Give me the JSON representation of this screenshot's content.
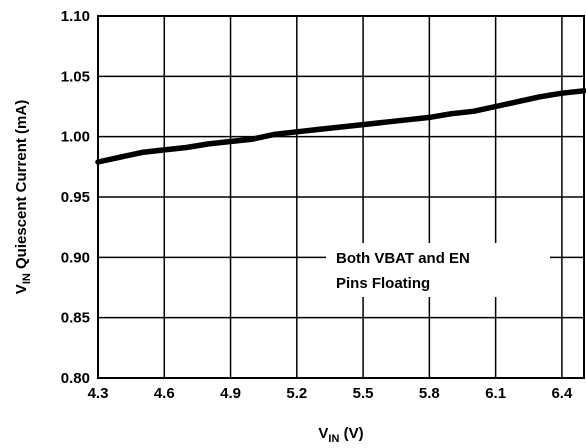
{
  "chart_data": {
    "type": "line",
    "title": "",
    "xlabel": {
      "main": "V",
      "sub": "IN",
      "suffix": " (V)"
    },
    "ylabel": {
      "main": "V",
      "sub": "IN",
      "suffix": " Quiescent Current (mA)"
    },
    "xlim": [
      4.3,
      6.5
    ],
    "ylim": [
      0.8,
      1.1
    ],
    "x_ticks": [
      4.3,
      4.6,
      4.9,
      5.2,
      5.5,
      5.8,
      6.1,
      6.4
    ],
    "x_tick_labels": [
      "4.3",
      "4.6",
      "4.9",
      "5.2",
      "5.5",
      "5.8",
      "6.1",
      "6.4"
    ],
    "y_ticks": [
      0.8,
      0.85,
      0.9,
      0.95,
      1.0,
      1.05,
      1.1
    ],
    "y_tick_labels": [
      "0.80",
      "0.85",
      "0.90",
      "0.95",
      "1.00",
      "1.05",
      "1.10"
    ],
    "grid": true,
    "series": [
      {
        "x": [
          4.3,
          4.4,
          4.5,
          4.6,
          4.7,
          4.8,
          4.9,
          5.0,
          5.1,
          5.2,
          5.3,
          5.4,
          5.5,
          5.6,
          5.7,
          5.8,
          5.9,
          6.0,
          6.1,
          6.2,
          6.3,
          6.4,
          6.5
        ],
        "values": [
          0.979,
          0.983,
          0.987,
          0.989,
          0.991,
          0.994,
          0.996,
          0.998,
          1.002,
          1.004,
          1.006,
          1.008,
          1.01,
          1.012,
          1.014,
          1.016,
          1.019,
          1.021,
          1.025,
          1.029,
          1.033,
          1.036,
          1.038
        ],
        "color": "#000000"
      }
    ],
    "annotation": [
      "Both VBAT and EN",
      "Pins Floating"
    ]
  },
  "colors": {
    "line": "#000000",
    "grid": "#000000",
    "background": "#ffffff"
  }
}
